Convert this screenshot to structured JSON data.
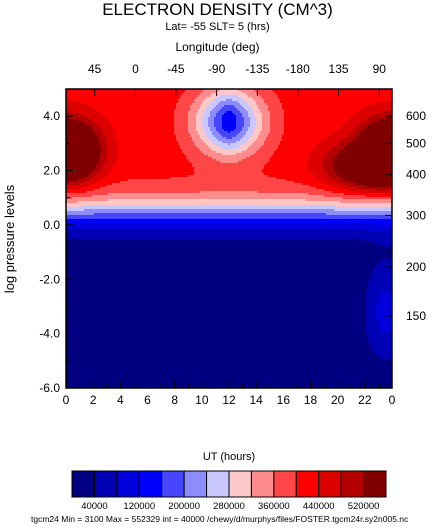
{
  "chart_data": {
    "type": "heatmap",
    "title": "ELECTRON DENSITY (CM^3)",
    "subtitle": "Lat= -55 SLT= 5 (hrs)",
    "x_label": "UT (hours)",
    "y_label": "log pressure levels",
    "top_axis_label": "Longitude (deg)",
    "x_ticks": [
      "0",
      "2",
      "4",
      "6",
      "8",
      "10",
      "12",
      "14",
      "16",
      "18",
      "20",
      "22",
      "0"
    ],
    "y_ticks": [
      "-6.0",
      "-4.0",
      "-2.0",
      "0.0",
      "2.0",
      "4.0"
    ],
    "top_ticks": [
      "45",
      "0",
      "-45",
      "-90",
      "-135",
      "-180",
      "135",
      "90"
    ],
    "right_ticks": [
      "150",
      "200",
      "300",
      "400",
      "500",
      "600"
    ],
    "xlim": [
      0,
      24
    ],
    "ylim": [
      -6,
      5
    ],
    "colorbar_labels": [
      "40000",
      "120000",
      "200000",
      "280000",
      "360000",
      "440000",
      "520000"
    ],
    "colors": [
      "#000080",
      "#0000b4",
      "#0000dc",
      "#0000ff",
      "#4646ff",
      "#8c8cff",
      "#c8c8ff",
      "#ffc8c8",
      "#ff8c8c",
      "#ff4646",
      "#ff0000",
      "#dc0000",
      "#b40000",
      "#800000"
    ],
    "contour_interval": 40000,
    "min": 3100,
    "max": 552329,
    "footer": "tgcm24 Min = 3100  Max  = 552329  int = 40000 /chewy/d/murphys/files/FOSTER.tgcm24r.sy2n005.nc"
  }
}
